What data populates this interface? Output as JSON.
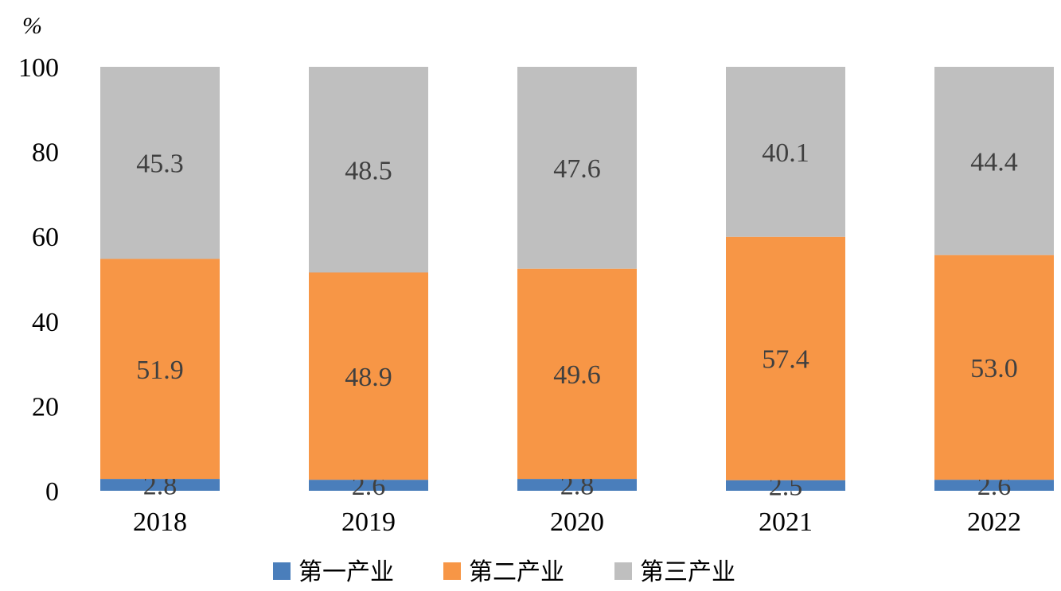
{
  "chart_data": {
    "type": "bar",
    "stacked": true,
    "categories": [
      "2018",
      "2019",
      "2020",
      "2021",
      "2022"
    ],
    "series": [
      {
        "name": "第一产业",
        "color": "#4a7ebb",
        "values": [
          2.8,
          2.6,
          2.8,
          2.5,
          2.6
        ]
      },
      {
        "name": "第二产业",
        "color": "#f79646",
        "values": [
          51.9,
          48.9,
          49.6,
          57.4,
          53.0
        ]
      },
      {
        "name": "第三产业",
        "color": "#bfbfbf",
        "values": [
          45.3,
          48.5,
          47.6,
          40.1,
          44.4
        ]
      }
    ],
    "data_labels": [
      [
        "2.8",
        "2.6",
        "2.8",
        "2.5",
        "2.6"
      ],
      [
        "51.9",
        "48.9",
        "49.6",
        "57.4",
        "53.0"
      ],
      [
        "45.3",
        "48.5",
        "47.6",
        "40.1",
        "44.4"
      ]
    ],
    "ylabel": "%",
    "yticks": [
      "0",
      "20",
      "40",
      "60",
      "80",
      "100"
    ],
    "ylim": [
      0,
      100
    ],
    "grid": false,
    "legend": "bottom"
  }
}
